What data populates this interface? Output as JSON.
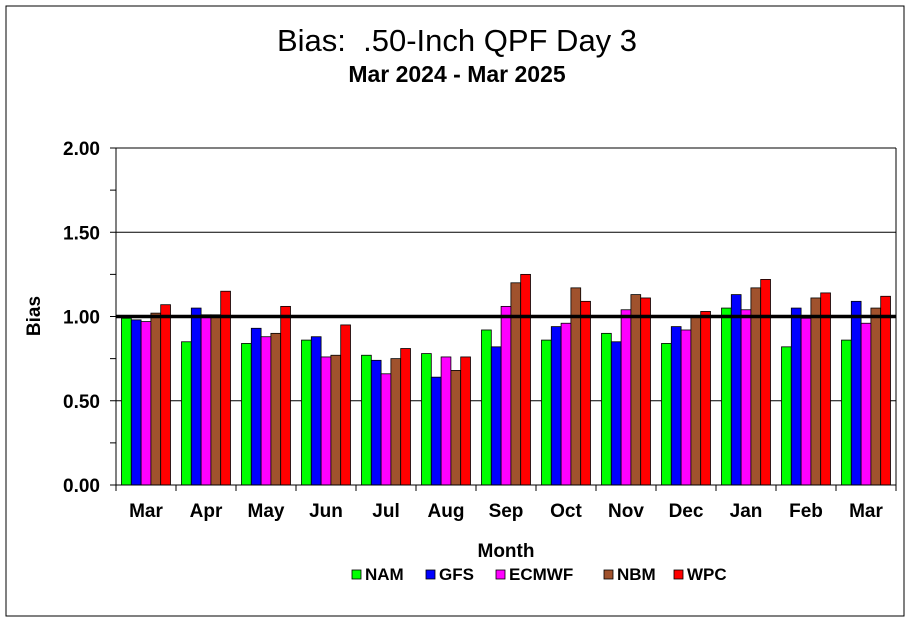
{
  "chart_data": {
    "type": "bar",
    "title": "Bias:  .50-Inch QPF Day 3",
    "subtitle": "Mar 2024 - Mar 2025",
    "xlabel": "Month",
    "ylabel": "Bias",
    "ylim": [
      0,
      2
    ],
    "yticks": [
      "0.00",
      "0.50",
      "1.00",
      "1.50",
      "2.00"
    ],
    "reference_line": 1.0,
    "grid": true,
    "legend": "bottom",
    "categories": [
      "Mar",
      "Apr",
      "May",
      "Jun",
      "Jul",
      "Aug",
      "Sep",
      "Oct",
      "Nov",
      "Dec",
      "Jan",
      "Feb",
      "Mar"
    ],
    "series": [
      {
        "name": "NAM",
        "color": "#00ff00",
        "values": [
          0.99,
          0.85,
          0.84,
          0.86,
          0.77,
          0.78,
          0.92,
          0.86,
          0.9,
          0.84,
          1.05,
          0.82,
          0.86
        ]
      },
      {
        "name": "GFS",
        "color": "#0000ff",
        "values": [
          0.98,
          1.05,
          0.93,
          0.88,
          0.74,
          0.64,
          0.82,
          0.94,
          0.85,
          0.94,
          1.13,
          1.05,
          1.09
        ]
      },
      {
        "name": "ECMWF",
        "color": "#ff00ff",
        "values": [
          0.97,
          1.01,
          0.88,
          0.76,
          0.66,
          0.76,
          1.06,
          0.96,
          1.04,
          0.92,
          1.04,
          0.99,
          0.96
        ]
      },
      {
        "name": "NBM",
        "color": "#a0522d",
        "values": [
          1.02,
          1.01,
          0.9,
          0.77,
          0.75,
          0.68,
          1.2,
          1.17,
          1.13,
          1.0,
          1.17,
          1.11,
          1.05
        ]
      },
      {
        "name": "WPC",
        "color": "#ff0000",
        "values": [
          1.07,
          1.15,
          1.06,
          0.95,
          0.81,
          0.76,
          1.25,
          1.09,
          1.11,
          1.03,
          1.22,
          1.14,
          1.12
        ]
      }
    ]
  }
}
